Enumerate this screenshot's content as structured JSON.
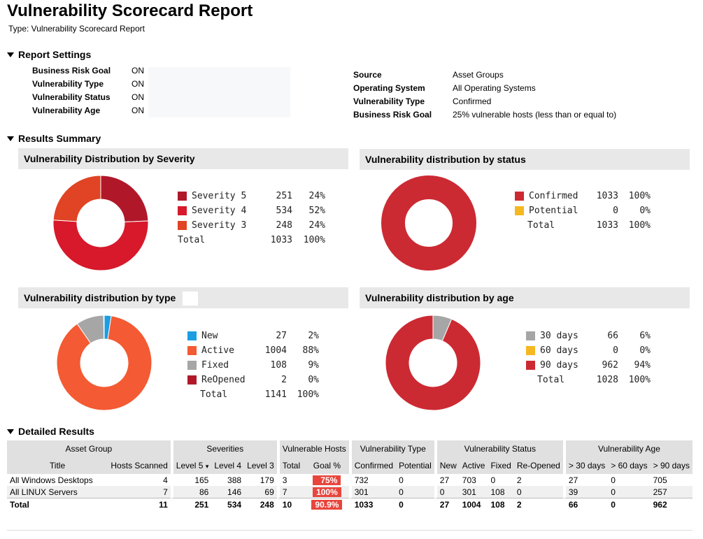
{
  "report": {
    "title": "Vulnerability Scorecard Report",
    "type_line": "Type: Vulnerability Scorecard Report"
  },
  "settings": {
    "heading": "Report Settings",
    "left": [
      {
        "label": "Business Risk Goal",
        "value": "ON"
      },
      {
        "label": "Vulnerability Type",
        "value": "ON"
      },
      {
        "label": "Vulnerability Status",
        "value": "ON"
      },
      {
        "label": "Vulnerability Age",
        "value": "ON"
      }
    ],
    "right": [
      {
        "label": "Source",
        "value": "Asset Groups"
      },
      {
        "label": "Operating System",
        "value": "All Operating Systems"
      },
      {
        "label": "Vulnerability Type",
        "value": "Confirmed"
      },
      {
        "label": "Business Risk Goal",
        "value": "25% vulnerable hosts (less than or equal to)"
      }
    ]
  },
  "summary": {
    "heading": "Results Summary",
    "panels": [
      {
        "title": "Vulnerability Distribution by Severity",
        "rows": [
          {
            "label": "Severity 5",
            "count": "251",
            "pct": "24%",
            "color": "#b0182a"
          },
          {
            "label": "Severity 4",
            "count": "534",
            "pct": "52%",
            "color": "#d7192b"
          },
          {
            "label": "Severity 3",
            "count": "248",
            "pct": "24%",
            "color": "#e04424"
          }
        ],
        "total": {
          "label": "Total",
          "count": "1033",
          "pct": "100%"
        }
      },
      {
        "title": "Vulnerability distribution by status",
        "rows": [
          {
            "label": "Confirmed",
            "count": "1033",
            "pct": "100%",
            "color": "#cc2a33"
          },
          {
            "label": "Potential",
            "count": "0",
            "pct": "0%",
            "color": "#f5b820"
          }
        ],
        "total": {
          "label": "Total",
          "count": "1033",
          "pct": "100%"
        }
      },
      {
        "title": "Vulnerability distribution by type",
        "rows": [
          {
            "label": "New",
            "count": "27",
            "pct": "2%",
            "color": "#1b9ee2"
          },
          {
            "label": "Active",
            "count": "1004",
            "pct": "88%",
            "color": "#f45a33"
          },
          {
            "label": "Fixed",
            "count": "108",
            "pct": "9%",
            "color": "#a6a6a6"
          },
          {
            "label": "ReOpened",
            "count": "2",
            "pct": "0%",
            "color": "#b0182a"
          }
        ],
        "total": {
          "label": "Total",
          "count": "1141",
          "pct": "100%"
        }
      },
      {
        "title": "Vulnerability distribution by age",
        "rows": [
          {
            "label": "30 days",
            "count": "66",
            "pct": "6%",
            "color": "#a6a6a6"
          },
          {
            "label": "60 days",
            "count": "0",
            "pct": "0%",
            "color": "#f5b820"
          },
          {
            "label": "90 days",
            "count": "962",
            "pct": "94%",
            "color": "#cc2a33"
          }
        ],
        "total": {
          "label": "Total",
          "count": "1028",
          "pct": "100%"
        }
      }
    ]
  },
  "chart_data": [
    {
      "type": "pie",
      "categories": [
        "Severity 5",
        "Severity 4",
        "Severity 3"
      ],
      "values": [
        251,
        534,
        248
      ],
      "title": "Vulnerability Distribution by Severity"
    },
    {
      "type": "pie",
      "categories": [
        "Confirmed",
        "Potential"
      ],
      "values": [
        1033,
        0
      ],
      "title": "Vulnerability distribution by status"
    },
    {
      "type": "pie",
      "categories": [
        "New",
        "Active",
        "Fixed",
        "ReOpened"
      ],
      "values": [
        27,
        1004,
        108,
        2
      ],
      "title": "Vulnerability distribution by type"
    },
    {
      "type": "pie",
      "categories": [
        "30 days",
        "60 days",
        "90 days"
      ],
      "values": [
        66,
        0,
        962
      ],
      "title": "Vulnerability distribution by age"
    }
  ],
  "details": {
    "heading": "Detailed Results",
    "group_headers": [
      "Asset Group",
      "Severities",
      "Vulnerable Hosts",
      "Vulnerability Type",
      "Vulnerability Status",
      "Vulnerability Age"
    ],
    "columns": [
      "Title",
      "Hosts Scanned",
      "Level 5",
      "Level 4",
      "Level 3",
      "Total",
      "Goal %",
      "Confirmed",
      "Potential",
      "New",
      "Active",
      "Fixed",
      "Re-Opened",
      "> 30 days",
      "> 60 days",
      "> 90 days"
    ],
    "sort_indicator": "▾",
    "rows": [
      [
        "All Windows Desktops",
        "4",
        "165",
        "388",
        "179",
        "3",
        "75%",
        "732",
        "0",
        "27",
        "703",
        "0",
        "2",
        "27",
        "0",
        "705"
      ],
      [
        "All LINUX Servers",
        "7",
        "86",
        "146",
        "69",
        "7",
        "100%",
        "301",
        "0",
        "0",
        "301",
        "108",
        "0",
        "39",
        "0",
        "257"
      ]
    ],
    "total": [
      "Total",
      "11",
      "251",
      "534",
      "248",
      "10",
      "90.9%",
      "1033",
      "0",
      "27",
      "1004",
      "108",
      "2",
      "66",
      "0",
      "962"
    ]
  }
}
